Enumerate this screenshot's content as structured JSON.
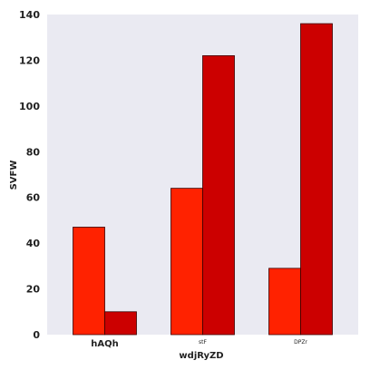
{
  "chart_data": {
    "type": "bar",
    "categories": [
      "hAQh",
      "stF",
      "DPZr"
    ],
    "category_font_sizes": [
      "large",
      "small",
      "small"
    ],
    "series": [
      {
        "color": "#ff2200",
        "values": [
          47,
          64,
          29
        ]
      },
      {
        "color": "#cc0000",
        "values": [
          10,
          122,
          136
        ]
      }
    ],
    "xlabel": "wdjRyZD",
    "ylabel": "SVFW",
    "ylim": [
      0,
      140
    ],
    "yticks": [
      0,
      20,
      40,
      60,
      80,
      100,
      120,
      140
    ],
    "grid": false,
    "legend": "none",
    "background": "#eaeaf2"
  }
}
